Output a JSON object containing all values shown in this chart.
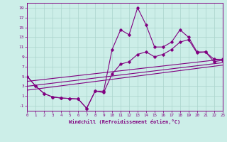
{
  "xlabel": "Windchill (Refroidissement éolien,°C)",
  "background_color": "#cceee8",
  "line_color": "#800080",
  "grid_color": "#aad4cc",
  "x_ticks": [
    0,
    1,
    2,
    3,
    4,
    5,
    6,
    7,
    8,
    9,
    10,
    11,
    12,
    13,
    14,
    15,
    16,
    17,
    18,
    19,
    20,
    21,
    22,
    23
  ],
  "y_ticks": [
    -1,
    1,
    3,
    5,
    7,
    9,
    11,
    13,
    15,
    17,
    19
  ],
  "xlim": [
    0,
    23
  ],
  "ylim": [
    -2,
    20
  ],
  "series1_x": [
    0,
    1,
    2,
    3,
    4,
    5,
    6,
    7,
    8,
    9,
    10,
    11,
    12,
    13,
    14,
    15,
    16,
    17,
    18,
    19,
    20,
    21,
    22,
    23
  ],
  "series1_y": [
    5,
    3,
    1.5,
    0.8,
    0.6,
    0.5,
    0.4,
    -1.5,
    2.0,
    2.0,
    10.5,
    14.5,
    13.5,
    19.0,
    15.5,
    11.0,
    11.0,
    12.0,
    14.5,
    13.0,
    10.0,
    10.0,
    8.5,
    8.5
  ],
  "series2_x": [
    0,
    1,
    2,
    3,
    4,
    5,
    6,
    7,
    8,
    9,
    10,
    11,
    12,
    13,
    14,
    15,
    16,
    17,
    18,
    19,
    20,
    21,
    22,
    23
  ],
  "series2_y": [
    5,
    3,
    1.5,
    0.8,
    0.6,
    0.5,
    0.4,
    -1.5,
    2.0,
    1.7,
    5.5,
    7.5,
    8.0,
    9.5,
    10.0,
    9.0,
    9.5,
    10.5,
    12.0,
    12.5,
    9.8,
    10.0,
    8.0,
    8.3
  ],
  "line1_x": [
    0,
    23
  ],
  "line1_y": [
    4.0,
    8.5
  ],
  "line2_x": [
    0,
    23
  ],
  "line2_y": [
    3.0,
    7.8
  ],
  "line3_x": [
    0,
    23
  ],
  "line3_y": [
    2.2,
    7.3
  ]
}
